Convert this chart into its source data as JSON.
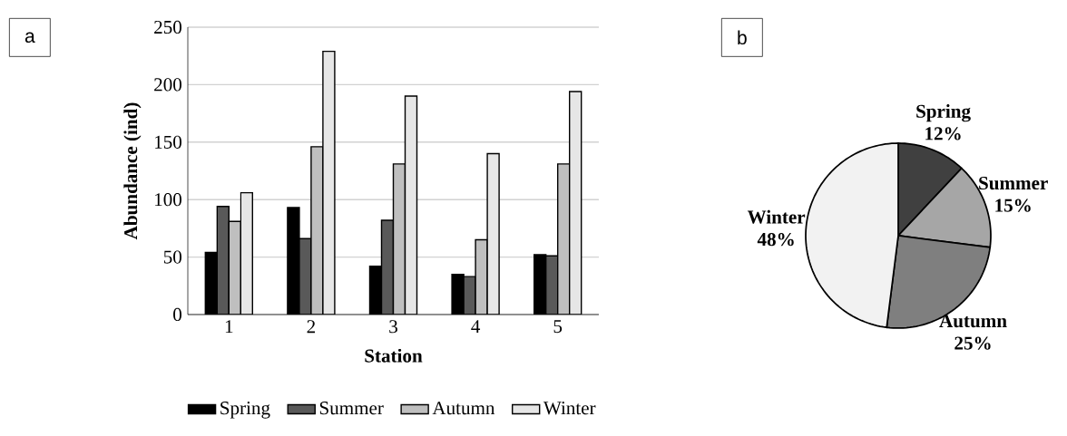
{
  "chart_data": [
    {
      "type": "bar",
      "xlabel": "Station",
      "ylabel": "Abundance (ind)",
      "categories": [
        "1",
        "2",
        "3",
        "4",
        "5"
      ],
      "series": [
        {
          "name": "Spring",
          "color": "#000000",
          "values": [
            54,
            93,
            42,
            35,
            52
          ]
        },
        {
          "name": "Summer",
          "color": "#595959",
          "values": [
            94,
            66,
            82,
            33,
            51
          ]
        },
        {
          "name": "Autumn",
          "color": "#bfbfbf",
          "values": [
            81,
            146,
            131,
            65,
            131
          ]
        },
        {
          "name": "Winter",
          "color": "#e6e6e6",
          "values": [
            106,
            229,
            190,
            140,
            194
          ]
        }
      ],
      "ylim": [
        0,
        250
      ],
      "yticks": [
        0,
        50,
        100,
        150,
        200,
        250
      ],
      "grid": "y",
      "legend": "bottom",
      "annotations": [
        "a"
      ]
    },
    {
      "type": "pie",
      "categories": [
        "Spring",
        "Summer",
        "Autumn",
        "Winter"
      ],
      "values": [
        12,
        15,
        25,
        48
      ],
      "value_labels": [
        "12%",
        "15%",
        "25%",
        "48%"
      ],
      "colors": [
        "#404040",
        "#a6a6a6",
        "#7f7f7f",
        "#f2f2f2"
      ],
      "annotations": [
        "b"
      ]
    }
  ]
}
